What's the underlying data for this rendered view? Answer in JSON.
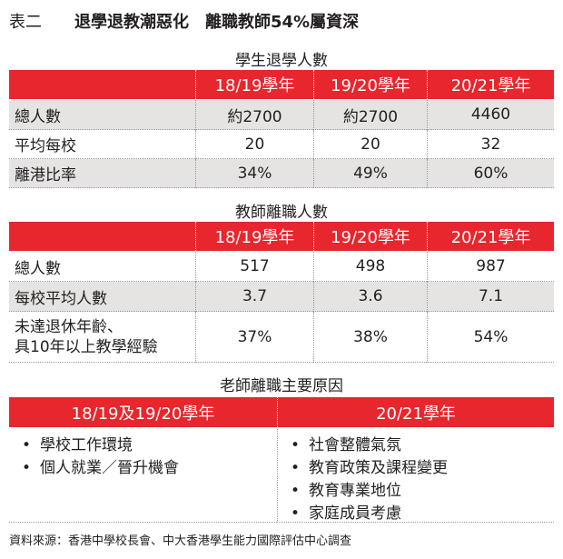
{
  "label": "表二",
  "title": "退學退教潮惡化　離職教師54%屬資深",
  "table1": {
    "title": "學生退學人數",
    "header": [
      "18/19學年",
      "19/20學年",
      "20/21學年"
    ],
    "rows": [
      [
        "總人數",
        "約2700",
        "約2700",
        "4460"
      ],
      [
        "平均每校",
        "20",
        "20",
        "32"
      ],
      [
        "離港比率",
        "34%",
        "49%",
        "60%"
      ]
    ]
  },
  "table2": {
    "title": "教師離職人數",
    "header": [
      "18/19學年",
      "19/20學年",
      "20/21學年"
    ],
    "rows": [
      [
        "總人數",
        "517",
        "498",
        "987"
      ],
      [
        "每校平均人數",
        "3.7",
        "3.6",
        "7.1"
      ],
      [
        [
          "未達退休年齡、",
          "具10年以上教學經驗"
        ],
        "37%",
        "38%",
        "54%"
      ]
    ]
  },
  "reasons": {
    "title": "老師離職主要原因",
    "columns": [
      {
        "header": "18/19及19/20學年",
        "items": [
          "學校工作環境",
          "個人就業／晉升機會"
        ]
      },
      {
        "header": "20/21學年",
        "items": [
          "社會整體氣氛",
          "教育政策及課程變更",
          "教育專業地位",
          "家庭成員考慮"
        ]
      }
    ]
  },
  "source": "資料來源：香港中學校長會、中大香港學生能力國際評估中心調查"
}
